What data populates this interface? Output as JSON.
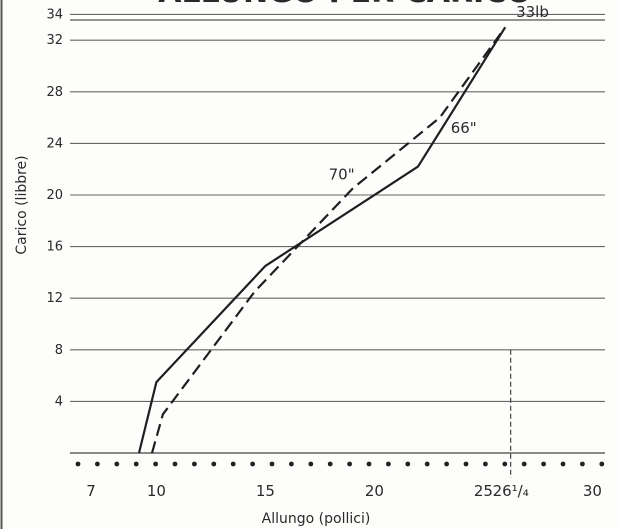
{
  "chart_data": {
    "type": "line",
    "title": "ALLUNGO PER CARICO",
    "xlabel": "Allungo (pollici)",
    "ylabel": "Carico (libbre)",
    "xlim": [
      6.5,
      31.5
    ],
    "ylim": [
      -1,
      37
    ],
    "x_ticks": [
      {
        "value": 7,
        "label": "7"
      },
      {
        "value": 10,
        "label": "10"
      },
      {
        "value": 15,
        "label": "15"
      },
      {
        "value": 20,
        "label": "20"
      },
      {
        "value": 25,
        "label": "25"
      },
      {
        "value": 26.25,
        "label": "26¹/₄"
      },
      {
        "value": 30,
        "label": "30"
      }
    ],
    "y_ticks": [
      4,
      8,
      12,
      16,
      20,
      24,
      28,
      32,
      34
    ],
    "grid": true,
    "series": [
      {
        "name": "66\"",
        "style": "solid",
        "x": [
          9.2,
          10,
          15,
          22,
          26
        ],
        "y": [
          0,
          5.5,
          14.5,
          22.2,
          33
        ]
      },
      {
        "name": "70\"",
        "style": "dashed",
        "x": [
          9.8,
          10.3,
          14.5,
          19,
          23,
          26
        ],
        "y": [
          0,
          3,
          12.5,
          20.5,
          26,
          33
        ]
      }
    ],
    "annotations": [
      {
        "text": "33lb",
        "x": 26.5,
        "y": 33.8
      },
      {
        "text": "66\"",
        "x": 23.5,
        "y": 24.8
      },
      {
        "text": "70\"",
        "x": 17.9,
        "y": 21.2
      }
    ],
    "reference_line": {
      "x": 26.25,
      "style": "dashed",
      "from_y": 0,
      "to_y": 8
    }
  }
}
